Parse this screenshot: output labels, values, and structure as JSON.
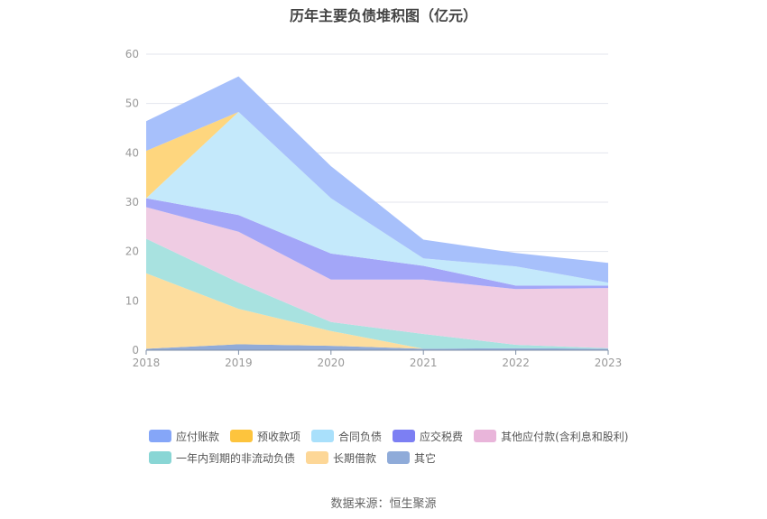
{
  "chart_data": {
    "type": "area",
    "stacked": true,
    "title": "历年主要负债堆积图（亿元）",
    "x": [
      "2018",
      "2019",
      "2020",
      "2021",
      "2022",
      "2023"
    ],
    "ylim": [
      0,
      60
    ],
    "yticks": [
      0,
      10,
      20,
      30,
      40,
      50,
      60
    ],
    "grid": true,
    "legend_position": "bottom",
    "series": [
      {
        "name": "其它",
        "color": "#91abd8",
        "values": [
          0.3,
          1.2,
          0.9,
          0.3,
          0.4,
          0.3
        ]
      },
      {
        "name": "长期借款",
        "color": "#fddd9e",
        "values": [
          15.3,
          7.2,
          3.0,
          0.0,
          0.0,
          0.0
        ]
      },
      {
        "name": "一年内到期的非流动负债",
        "color": "#a8e2e0",
        "values": [
          7.0,
          5.3,
          1.8,
          3.0,
          0.7,
          0.1
        ]
      },
      {
        "name": "其他应付款(含利息和股利)",
        "color": "#efcce3",
        "values": [
          6.4,
          10.3,
          8.6,
          11.0,
          11.3,
          12.2
        ]
      },
      {
        "name": "应交税费",
        "color": "#a3a6f8",
        "values": [
          1.8,
          3.4,
          5.3,
          2.8,
          0.7,
          0.5
        ]
      },
      {
        "name": "合同负债",
        "color": "#c4e9fb",
        "values": [
          0.0,
          20.9,
          11.2,
          1.5,
          3.9,
          0.6
        ]
      },
      {
        "name": "预收款项",
        "color": "#fed67e",
        "values": [
          9.6,
          0.0,
          0.0,
          0.0,
          0.0,
          0.0
        ]
      },
      {
        "name": "应付账款",
        "color": "#a7c0fb",
        "values": [
          6.0,
          7.2,
          6.5,
          3.8,
          2.7,
          4.0
        ]
      }
    ]
  },
  "legend": {
    "row1": [
      {
        "label": "应付账款",
        "color": "#85a6f8"
      },
      {
        "label": "预收款项",
        "color": "#fdc43d"
      },
      {
        "label": "合同负债",
        "color": "#a9e0fb"
      },
      {
        "label": "应交税费",
        "color": "#7c7ff3"
      },
      {
        "label": "其他应付款(含利息和股利)",
        "color": "#e9b5da"
      }
    ],
    "row2": [
      {
        "label": "一年内到期的非流动负债",
        "color": "#89d6d5"
      },
      {
        "label": "长期借款",
        "color": "#fdd797"
      },
      {
        "label": "其它",
        "color": "#8fabd9"
      }
    ]
  },
  "source": "数据来源：恒生聚源"
}
